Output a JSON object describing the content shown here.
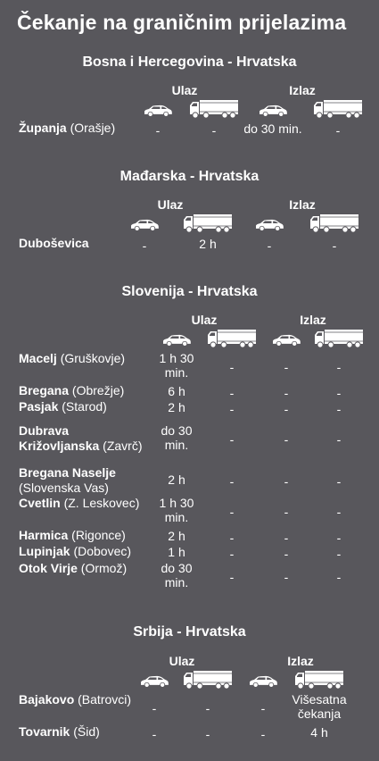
{
  "title": "Čekanje na graničnim prijelazima",
  "labels": {
    "entry": "Ulaz",
    "exit": "Izlaz"
  },
  "icons": {
    "car": "car-icon",
    "truck": "truck-icon"
  },
  "sections": [
    {
      "title": "Bosna i Hercegovina - Hrvatska",
      "rows": [
        {
          "name": "Županja",
          "place": "(Orašje)",
          "values": [
            "-",
            "-",
            "do 30 min.",
            "-"
          ]
        }
      ]
    },
    {
      "title": "Mađarska - Hrvatska",
      "rows": [
        {
          "name": "Duboševica",
          "place": "",
          "values": [
            "-",
            "2 h",
            "-",
            "-"
          ]
        }
      ]
    },
    {
      "title": "Slovenija - Hrvatska",
      "rows": [
        {
          "name": "Macelj",
          "place": "(Gruškovje)",
          "values": [
            "1 h 30 min.",
            "-",
            "-",
            "-"
          ]
        },
        {
          "name": "Bregana",
          "place": "(Obrežje)",
          "values": [
            "6 h",
            "-",
            "-",
            "-"
          ]
        },
        {
          "name": "Pasjak",
          "place": "(Starod)",
          "values": [
            "2 h",
            "-",
            "-",
            "-"
          ]
        },
        {
          "name": "Dubrava Križovljanska",
          "place": "(Zavrč)",
          "values": [
            "do 30 min.",
            "-",
            "-",
            "-"
          ]
        },
        {
          "name": "Bregana Naselje",
          "place": "(Slovenska Vas)",
          "values": [
            "2 h",
            "-",
            "-",
            "-"
          ]
        },
        {
          "name": "Cvetlin",
          "place": "(Z. Leskovec)",
          "values": [
            "1 h 30 min.",
            "-",
            "-",
            "-"
          ]
        },
        {
          "name": "Harmica",
          "place": "(Rigonce)",
          "values": [
            "2 h",
            "-",
            "-",
            "-"
          ]
        },
        {
          "name": "Lupinjak",
          "place": "(Dobovec)",
          "values": [
            "1 h",
            "-",
            "-",
            "-"
          ]
        },
        {
          "name": "Otok Virje",
          "place": "(Ormož)",
          "values": [
            "do 30 min.",
            "-",
            "-",
            "-"
          ]
        }
      ]
    },
    {
      "title": "Srbija - Hrvatska",
      "rows": [
        {
          "name": "Bajakovo",
          "place": "(Batrovci)",
          "values": [
            "-",
            "-",
            "-",
            "Višesatna čekanja"
          ]
        },
        {
          "name": "Tovarnik",
          "place": "(Šid)",
          "values": [
            "-",
            "-",
            "-",
            "4 h"
          ]
        }
      ]
    }
  ]
}
